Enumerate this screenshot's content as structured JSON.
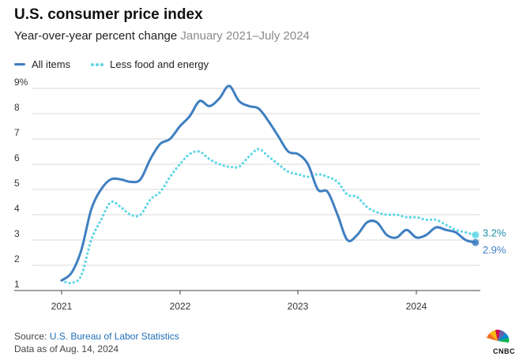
{
  "header": {
    "title": "U.S. consumer price index",
    "subtitle": "Year-over-year percent change",
    "subtitle_range": "January 2021–July 2024"
  },
  "legend": {
    "all_items": "All items",
    "core": "Less food and energy"
  },
  "footer": {
    "source_prefix": "Source: ",
    "source_name": "U.S. Bureau of Labor Statistics",
    "data_as_of": "Data as of Aug. 14, 2024"
  },
  "logo": {
    "name": "cnbc-peacock-logo",
    "text": "CNBC"
  },
  "colors": {
    "all_items": "#3f7fc1",
    "core": "#5fd6e6",
    "grid": "#d9d9d9",
    "end_label_all": "#3f7fc1",
    "end_label_core": "#1f8fa6"
  },
  "chart_data": {
    "type": "line",
    "title": "U.S. consumer price index",
    "subtitle": "Year-over-year percent change January 2021–July 2024",
    "x": [
      "2021-01",
      "2021-02",
      "2021-03",
      "2021-04",
      "2021-05",
      "2021-06",
      "2021-07",
      "2021-08",
      "2021-09",
      "2021-10",
      "2021-11",
      "2021-12",
      "2022-01",
      "2022-02",
      "2022-03",
      "2022-04",
      "2022-05",
      "2022-06",
      "2022-07",
      "2022-08",
      "2022-09",
      "2022-10",
      "2022-11",
      "2022-12",
      "2023-01",
      "2023-02",
      "2023-03",
      "2023-04",
      "2023-05",
      "2023-06",
      "2023-07",
      "2023-08",
      "2023-09",
      "2023-10",
      "2023-11",
      "2023-12",
      "2024-01",
      "2024-02",
      "2024-03",
      "2024-04",
      "2024-05",
      "2024-06",
      "2024-07"
    ],
    "x_ticks": [
      "2021",
      "2022",
      "2023",
      "2024"
    ],
    "y_ticks": [
      "1",
      "2",
      "3",
      "4",
      "5",
      "6",
      "7",
      "8",
      "9%"
    ],
    "ylim": [
      1,
      9
    ],
    "grid": "horizontal",
    "series": [
      {
        "name": "All items",
        "style": "solid",
        "values": [
          1.4,
          1.7,
          2.6,
          4.2,
          5.0,
          5.4,
          5.4,
          5.3,
          5.4,
          6.2,
          6.8,
          7.0,
          7.5,
          7.9,
          8.5,
          8.3,
          8.6,
          9.1,
          8.5,
          8.3,
          8.2,
          7.7,
          7.1,
          6.5,
          6.4,
          6.0,
          5.0,
          4.9,
          4.0,
          3.0,
          3.2,
          3.7,
          3.7,
          3.2,
          3.1,
          3.4,
          3.1,
          3.2,
          3.5,
          3.4,
          3.3,
          3.0,
          2.9
        ],
        "end_label": "2.9%"
      },
      {
        "name": "Less food and energy",
        "style": "dotted",
        "values": [
          1.4,
          1.3,
          1.6,
          3.0,
          3.8,
          4.5,
          4.3,
          4.0,
          4.0,
          4.6,
          4.9,
          5.5,
          6.0,
          6.4,
          6.5,
          6.2,
          6.0,
          5.9,
          5.9,
          6.3,
          6.6,
          6.3,
          6.0,
          5.7,
          5.6,
          5.5,
          5.6,
          5.5,
          5.3,
          4.8,
          4.7,
          4.3,
          4.1,
          4.0,
          4.0,
          3.9,
          3.9,
          3.8,
          3.8,
          3.6,
          3.4,
          3.3,
          3.2
        ],
        "end_label": "3.2%"
      }
    ]
  }
}
